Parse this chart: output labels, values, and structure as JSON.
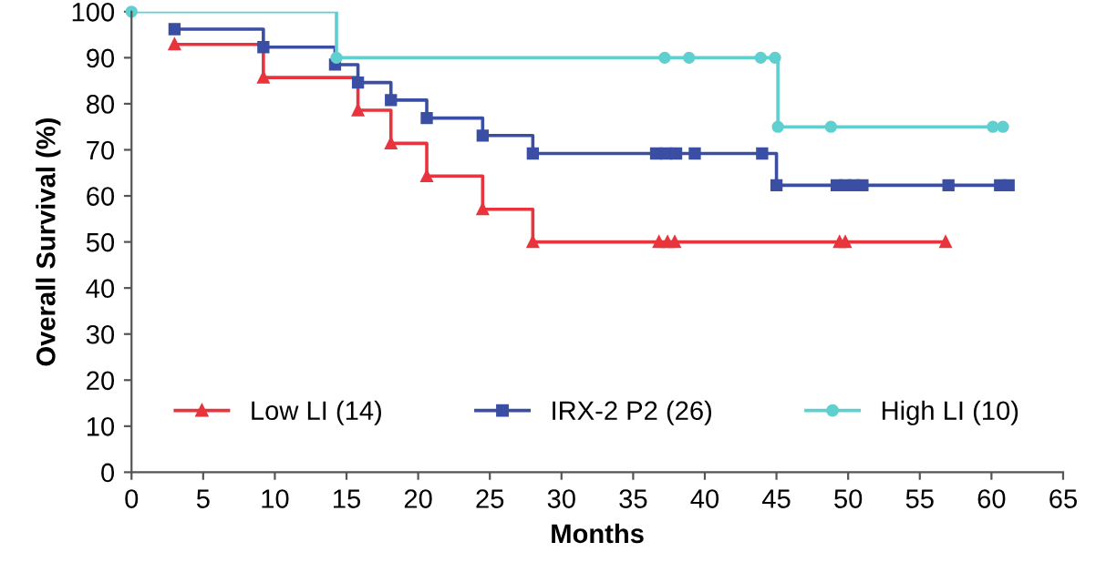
{
  "chart_data": {
    "type": "step",
    "xlabel": "Months",
    "ylabel": "Overall Survival (%)",
    "xlim": [
      0,
      65
    ],
    "ylim": [
      0,
      100
    ],
    "xticks": [
      0,
      5,
      10,
      15,
      20,
      25,
      30,
      35,
      40,
      45,
      50,
      55,
      60,
      65
    ],
    "yticks": [
      0,
      10,
      20,
      30,
      40,
      50,
      60,
      70,
      80,
      90,
      100
    ],
    "grid": false,
    "legend": "bottom",
    "series": [
      {
        "name": "Low LI (14)",
        "color": "#e8343c",
        "marker": "triangle",
        "x": [
          3,
          9.2,
          15.8,
          18.1,
          20.6,
          24.5,
          28,
          36.8,
          37.4,
          37.9,
          49.4,
          49.8,
          56.8
        ],
        "values": [
          92.9,
          85.7,
          78.6,
          71.4,
          64.3,
          57.1,
          50,
          50,
          50,
          50,
          50,
          50,
          50
        ]
      },
      {
        "name": "IRX-2 P2 (26)",
        "color": "#3a4fa3",
        "marker": "square",
        "x": [
          3,
          9.2,
          14.2,
          15.8,
          18.1,
          20.6,
          24.5,
          28,
          36.6,
          37.3,
          38.0,
          39.3,
          44,
          45,
          49.2,
          49.8,
          50.4,
          51,
          57,
          60.6,
          61.2
        ],
        "values": [
          96.2,
          92.3,
          88.5,
          84.6,
          80.8,
          76.9,
          73.1,
          69.2,
          69.2,
          69.2,
          69.2,
          69.2,
          69.2,
          62.3,
          62.3,
          62.3,
          62.3,
          62.3,
          62.3,
          62.3,
          62.3
        ]
      },
      {
        "name": "High LI (10)",
        "color": "#5fcfcf",
        "marker": "circle",
        "x": [
          0,
          14.3,
          37.2,
          38.9,
          43.9,
          44.9,
          45.1,
          48.8,
          60.1,
          60.8
        ],
        "values": [
          100,
          90,
          90,
          90,
          90,
          90,
          75,
          75,
          75,
          75
        ]
      }
    ]
  }
}
